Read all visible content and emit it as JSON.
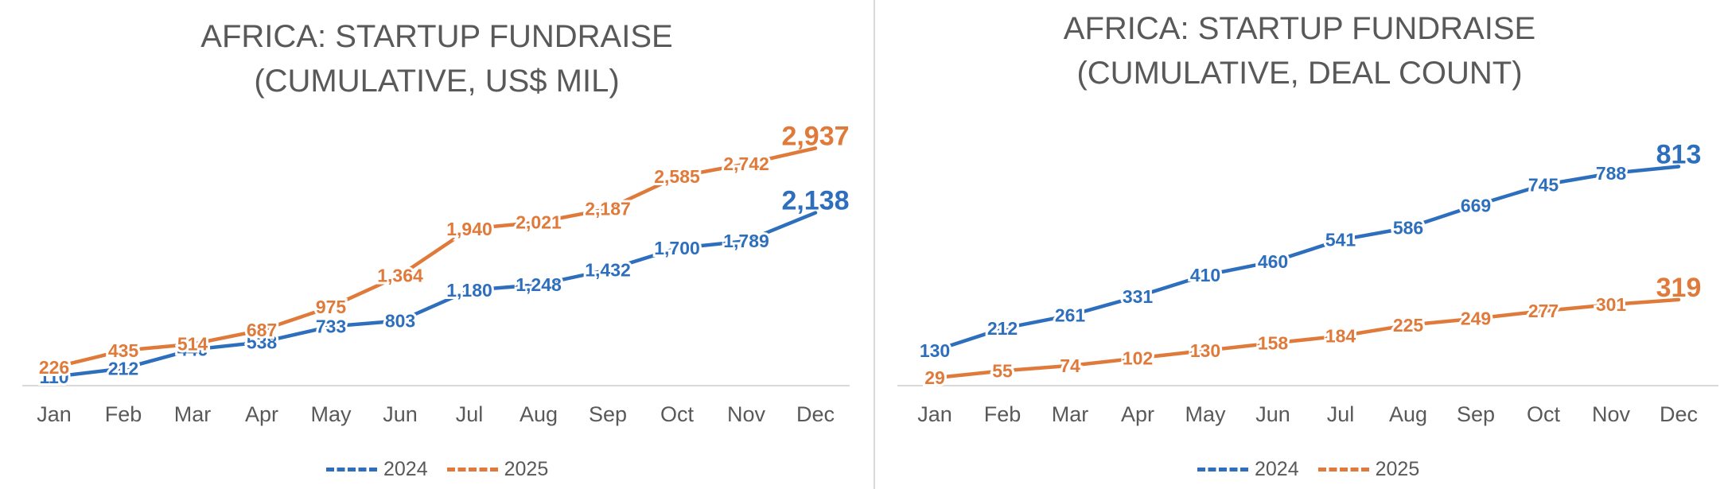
{
  "chart_data": [
    {
      "type": "line",
      "title_line1": "AFRICA: STARTUP FUNDRAISE",
      "title_line2": "(CUMULATIVE, US$ MIL)",
      "categories": [
        "Jan",
        "Feb",
        "Mar",
        "Apr",
        "May",
        "Jun",
        "Jul",
        "Aug",
        "Sep",
        "Oct",
        "Nov",
        "Dec"
      ],
      "series": [
        {
          "name": "2024",
          "color": "#2e6fbd",
          "values": [
            110,
            212,
            446,
            538,
            733,
            803,
            1180,
            1248,
            1432,
            1700,
            1789,
            2138
          ],
          "labels": [
            "110",
            "212",
            "446",
            "538",
            "733",
            "803",
            "1,180",
            "1,248",
            "1,432",
            "1,700",
            "1,789",
            "2,138"
          ]
        },
        {
          "name": "2025",
          "color": "#e07a3a",
          "values": [
            226,
            435,
            514,
            687,
            975,
            1364,
            1940,
            2021,
            2187,
            2585,
            2742,
            2937
          ],
          "labels": [
            "226",
            "435",
            "514",
            "687",
            "975",
            "1,364",
            "1,940",
            "2,021",
            "2,187",
            "2,585",
            "2,742",
            "2,937"
          ]
        }
      ],
      "ylim": [
        0,
        3000
      ],
      "grid": false,
      "legend_position": "bottom"
    },
    {
      "type": "line",
      "title_line1": "AFRICA: STARTUP FUNDRAISE",
      "title_line2": "(CUMULATIVE, DEAL COUNT)",
      "categories": [
        "Jan",
        "Feb",
        "Mar",
        "Apr",
        "May",
        "Jun",
        "Jul",
        "Aug",
        "Sep",
        "Oct",
        "Nov",
        "Dec"
      ],
      "series": [
        {
          "name": "2024",
          "color": "#2e6fbd",
          "values": [
            130,
            212,
            261,
            331,
            410,
            460,
            541,
            586,
            669,
            745,
            788,
            813
          ],
          "labels": [
            "130",
            "212",
            "261",
            "331",
            "410",
            "460",
            "541",
            "586",
            "669",
            "745",
            "788",
            "813"
          ]
        },
        {
          "name": "2025",
          "color": "#e07a3a",
          "values": [
            29,
            55,
            74,
            102,
            130,
            158,
            184,
            225,
            249,
            277,
            301,
            319
          ],
          "labels": [
            "29",
            "55",
            "74",
            "102",
            "130",
            "158",
            "184",
            "225",
            "249",
            "277",
            "301",
            "319"
          ]
        }
      ],
      "ylim": [
        0,
        900
      ],
      "grid": false,
      "legend_position": "bottom"
    }
  ]
}
